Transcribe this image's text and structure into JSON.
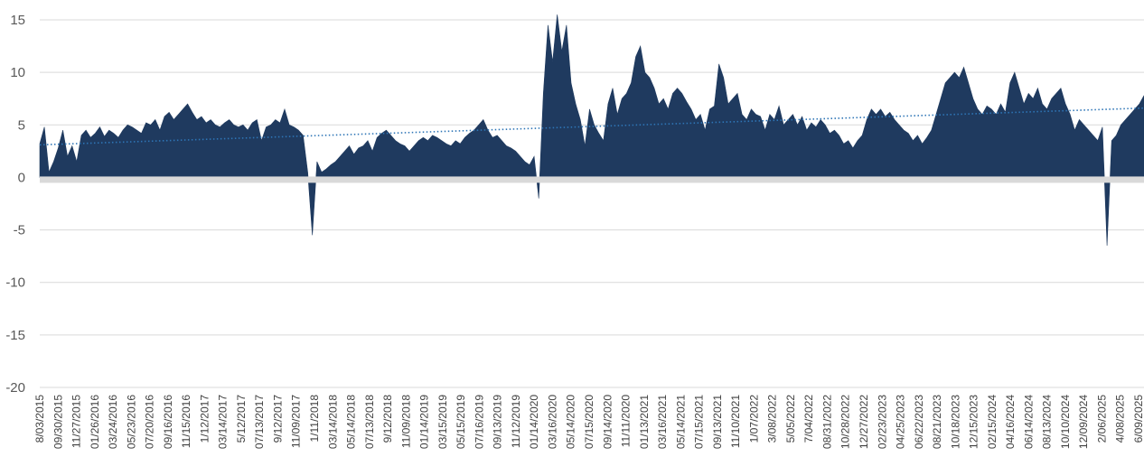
{
  "chart_data": {
    "type": "area",
    "title": "",
    "xlabel": "",
    "ylabel": "",
    "ylim": [
      -20,
      15
    ],
    "yticks": [
      15,
      10,
      5,
      0,
      -5,
      -10,
      -15,
      -20
    ],
    "grid": true,
    "legend": "none",
    "colors": {
      "area": "#1f3a5f",
      "trend": "#2e75b6",
      "grid": "#d9d9d9",
      "zero_band": "#d9d9d9"
    },
    "x_tick_labels": [
      "8/03/2015",
      "09/30/2015",
      "11/27/2015",
      "01/26/2016",
      "03/24/2016",
      "05/23/2016",
      "07/20/2016",
      "09/16/2016",
      "11/15/2016",
      "1/12/2017",
      "03/14/2017",
      "5/12/2017",
      "07/13/2017",
      "9/12/2017",
      "11/09/2017",
      "1/11/2018",
      "03/14/2018",
      "05/14/2018",
      "07/13/2018",
      "9/12/2018",
      "11/09/2018",
      "01/14/2019",
      "03/15/2019",
      "05/15/2019",
      "07/16/2019",
      "09/13/2019",
      "11/12/2019",
      "01/14/2020",
      "03/16/2020",
      "05/14/2020",
      "07/15/2020",
      "09/14/2020",
      "11/11/2020",
      "01/13/2021",
      "03/16/2021",
      "05/14/2021",
      "07/15/2021",
      "09/13/2021",
      "11/10/2021",
      "1/07/2022",
      "3/08/2022",
      "5/05/2022",
      "7/04/2022",
      "08/31/2022",
      "10/28/2022",
      "12/27/2022",
      "02/23/2023",
      "04/25/2023",
      "06/22/2023",
      "08/21/2023",
      "10/18/2023",
      "12/15/2023",
      "02/15/2024",
      "04/16/2024",
      "06/14/2024",
      "08/13/2024",
      "10/10/2024",
      "12/09/2024",
      "2/06/2025",
      "4/08/2025",
      "6/09/2025"
    ],
    "series": [
      {
        "values": [
          3.2,
          4.8,
          0.5,
          1.5,
          2.8,
          4.5,
          2.0,
          3.0,
          1.5,
          4.0,
          4.5,
          3.8,
          4.2,
          4.8,
          3.9,
          4.5,
          4.2,
          3.8,
          4.5,
          5.0,
          4.8,
          4.5,
          4.2,
          5.2,
          5.0,
          5.5,
          4.5,
          5.8,
          6.2,
          5.5,
          6.0,
          6.5,
          7.0,
          6.2,
          5.5,
          5.8,
          5.2,
          5.5,
          5.0,
          4.8,
          5.2,
          5.5,
          5.0,
          4.8,
          5.0,
          4.5,
          5.2,
          5.5,
          3.5,
          4.8,
          5.0,
          5.5,
          5.2,
          6.5,
          5.0,
          4.8,
          4.5,
          4.0,
          0.5,
          -5.5,
          1.5,
          0.5,
          0.8,
          1.2,
          1.5,
          2.0,
          2.5,
          3.0,
          2.2,
          2.8,
          3.0,
          3.5,
          2.5,
          3.8,
          4.2,
          4.5,
          4.0,
          3.5,
          3.2,
          3.0,
          2.5,
          3.0,
          3.5,
          3.8,
          3.5,
          4.0,
          3.8,
          3.5,
          3.2,
          3.0,
          3.5,
          3.2,
          3.8,
          4.2,
          4.5,
          5.0,
          5.5,
          4.5,
          3.8,
          4.0,
          3.5,
          3.0,
          2.8,
          2.5,
          2.0,
          1.5,
          1.2,
          2.0,
          -2.0,
          8.0,
          14.5,
          11.0,
          15.5,
          12.0,
          14.5,
          9.0,
          7.0,
          5.5,
          3.0,
          6.5,
          5.0,
          4.2,
          3.5,
          7.0,
          8.5,
          6.0,
          7.5,
          8.0,
          9.0,
          11.5,
          12.5,
          10.0,
          9.5,
          8.5,
          7.0,
          7.5,
          6.5,
          8.0,
          8.5,
          8.0,
          7.2,
          6.5,
          5.5,
          6.0,
          4.5,
          6.5,
          6.8,
          10.8,
          9.5,
          7.0,
          7.5,
          8.0,
          6.0,
          5.5,
          6.5,
          6.0,
          5.8,
          4.5,
          6.0,
          5.5,
          6.8,
          5.0,
          5.5,
          6.0,
          5.0,
          5.8,
          4.5,
          5.2,
          4.8,
          5.5,
          5.0,
          4.2,
          4.5,
          4.0,
          3.2,
          3.5,
          2.8,
          3.5,
          4.0,
          5.5,
          6.5,
          6.0,
          6.5,
          5.8,
          6.2,
          5.5,
          5.0,
          4.5,
          4.2,
          3.5,
          4.0,
          3.2,
          3.8,
          4.5,
          6.0,
          7.5,
          9.0,
          9.5,
          10.0,
          9.5,
          10.5,
          9.0,
          7.5,
          6.5,
          6.0,
          6.8,
          6.5,
          6.0,
          7.0,
          6.2,
          9.0,
          10.0,
          8.5,
          7.0,
          8.0,
          7.5,
          8.5,
          7.0,
          6.5,
          7.5,
          8.0,
          8.5,
          7.0,
          6.0,
          4.5,
          5.5,
          5.0,
          4.5,
          4.0,
          3.5,
          4.8,
          -6.5,
          3.5,
          4.0,
          5.0,
          5.5,
          6.0,
          6.5,
          7.0,
          7.8
        ]
      }
    ],
    "trendline": {
      "style": "dotted",
      "start": 3.1,
      "end": 6.6
    }
  }
}
